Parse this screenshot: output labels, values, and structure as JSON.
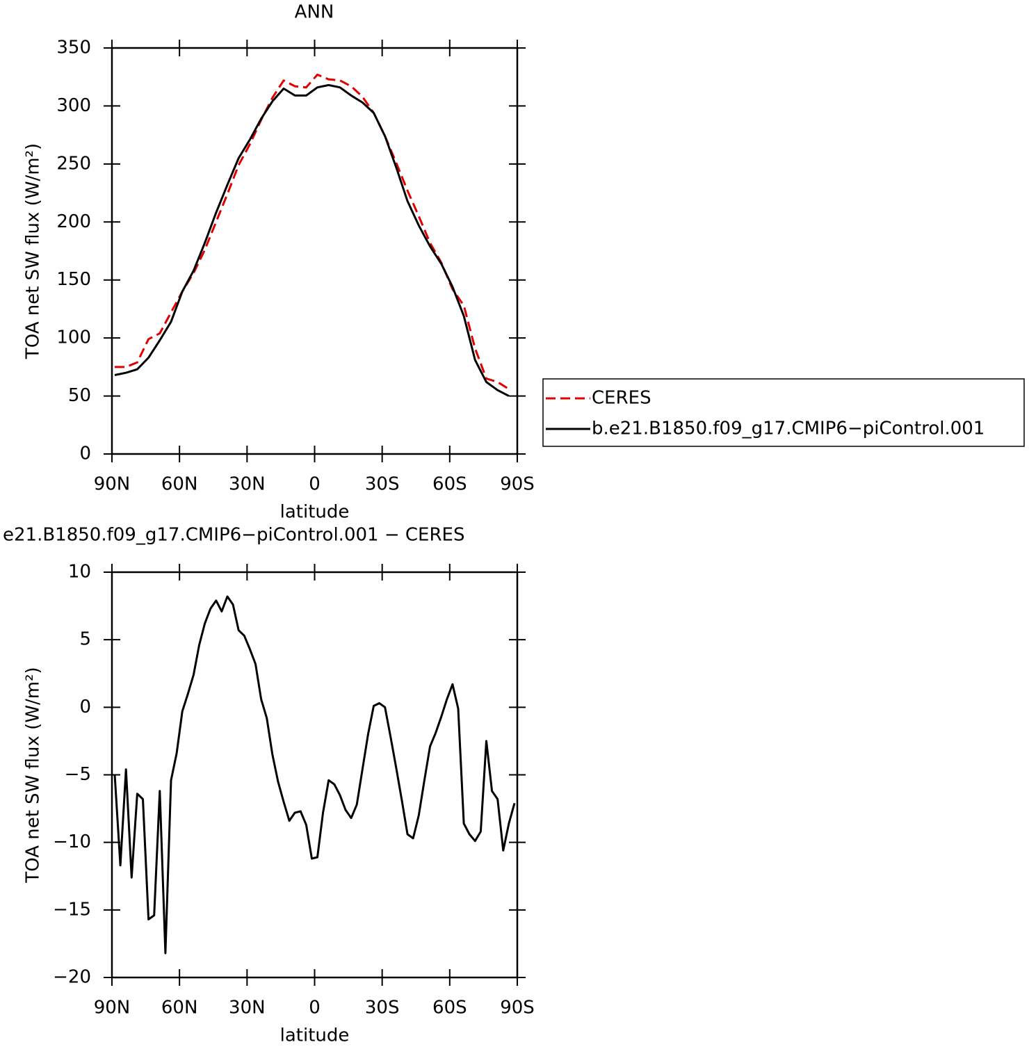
{
  "chart_data": [
    {
      "type": "line",
      "title": "ANN",
      "xlabel": "latitude",
      "ylabel": "TOA net SW flux (W/m²)",
      "x": [
        88.75,
        83.75,
        78.75,
        73.75,
        68.75,
        63.75,
        58.75,
        53.75,
        48.75,
        43.75,
        38.75,
        33.75,
        28.75,
        23.75,
        18.75,
        13.75,
        8.75,
        3.75,
        -1.25,
        -6.25,
        -11.25,
        -16.25,
        -21.25,
        -26.25,
        -31.25,
        -36.25,
        -41.25,
        -46.25,
        -51.25,
        -56.25,
        -61.25,
        -66.25,
        -71.25,
        -76.25,
        -81.25,
        -86.25
      ],
      "series": [
        {
          "name": "CERES",
          "color": "#e00000",
          "linestyle": "dashed",
          "values": [
            75,
            75,
            79,
            99,
            104,
            122,
            140,
            156,
            176,
            200,
            224,
            249,
            267,
            288,
            307,
            322,
            317,
            316,
            327,
            323,
            322,
            317,
            308,
            294,
            274,
            251,
            227,
            205,
            182,
            165,
            142,
            128,
            91,
            65,
            62,
            56
          ]
        },
        {
          "name": "b.e21.B1850.f09_g17.CMIP6−piControl.001",
          "color": "#000000",
          "linestyle": "solid",
          "values": [
            68,
            70,
            73,
            83,
            98,
            114,
            140,
            158,
            182,
            208,
            232,
            255,
            271,
            289,
            304,
            315,
            309,
            309,
            316,
            318,
            316,
            309,
            303,
            294,
            274,
            247,
            218,
            197,
            179,
            164,
            144,
            119,
            81,
            62,
            55,
            50
          ]
        }
      ],
      "xlim": [
        90,
        -90
      ],
      "xticks": [
        {
          "value": 90,
          "label": "90N"
        },
        {
          "value": 60,
          "label": "60N"
        },
        {
          "value": 30,
          "label": "30N"
        },
        0,
        {
          "value": -30,
          "label": "30S"
        },
        {
          "value": -60,
          "label": "60S"
        },
        {
          "value": -90,
          "label": "90S"
        }
      ],
      "ylim": [
        0,
        350
      ],
      "yticks": [
        0,
        50,
        100,
        150,
        200,
        250,
        300,
        350
      ],
      "legend": "right"
    },
    {
      "type": "line",
      "title": "e21.B1850.f09_g17.CMIP6−piControl.001 − CERES",
      "xlabel": "latitude",
      "ylabel": "TOA net SW flux (W/m²)",
      "x": [
        88.75,
        86.25,
        83.75,
        81.25,
        78.75,
        76.25,
        73.75,
        71.25,
        68.75,
        66.25,
        63.75,
        61.25,
        58.75,
        56.25,
        53.75,
        51.25,
        48.75,
        46.25,
        43.75,
        41.25,
        38.75,
        36.25,
        33.75,
        31.25,
        28.75,
        26.25,
        23.75,
        21.25,
        18.75,
        16.25,
        13.75,
        11.25,
        8.75,
        6.25,
        3.75,
        1.25,
        -1.25,
        -3.75,
        -6.25,
        -8.75,
        -11.25,
        -13.75,
        -16.25,
        -18.75,
        -21.25,
        -23.75,
        -26.25,
        -28.75,
        -31.25,
        -33.75,
        -36.25,
        -38.75,
        -41.25,
        -43.75,
        -46.25,
        -48.75,
        -51.25,
        -53.75,
        -56.25,
        -58.75,
        -61.25,
        -63.75,
        -66.25,
        -68.75,
        -71.25,
        -73.75,
        -76.25,
        -78.75,
        -81.25,
        -83.75,
        -86.25,
        -88.75
      ],
      "values": [
        -5.0,
        -11.7,
        -4.6,
        -12.6,
        -6.4,
        -6.8,
        -15.7,
        -15.4,
        -6.2,
        -18.2,
        -5.4,
        -3.4,
        -0.3,
        1.0,
        2.4,
        4.6,
        6.2,
        7.3,
        7.9,
        7.1,
        8.2,
        7.6,
        5.7,
        5.3,
        4.3,
        3.2,
        0.6,
        -0.8,
        -3.5,
        -5.5,
        -7.0,
        -8.4,
        -7.8,
        -7.7,
        -8.7,
        -11.2,
        -11.1,
        -7.8,
        -5.4,
        -5.7,
        -6.5,
        -7.6,
        -8.2,
        -7.2,
        -4.6,
        -2.0,
        0.1,
        0.3,
        0.0,
        -2.2,
        -4.5,
        -6.9,
        -9.4,
        -9.7,
        -8.0,
        -5.4,
        -2.9,
        -1.9,
        -0.7,
        0.6,
        1.7,
        -0.1,
        -8.6,
        -9.4,
        -9.9,
        -9.2,
        -2.5,
        -6.2,
        -6.8,
        -10.6,
        -8.6,
        -7.1
      ],
      "color": "#000000",
      "xlim": [
        90,
        -90
      ],
      "xticks": [
        {
          "value": 90,
          "label": "90N"
        },
        {
          "value": 60,
          "label": "60N"
        },
        {
          "value": 30,
          "label": "30N"
        },
        0,
        {
          "value": -30,
          "label": "30S"
        },
        {
          "value": -60,
          "label": "60S"
        },
        {
          "value": -90,
          "label": "90S"
        }
      ],
      "ylim": [
        -20,
        10
      ],
      "yticks": [
        {
          "value": -20,
          "label": "−20"
        },
        {
          "value": -15,
          "label": "−15"
        },
        {
          "value": -10,
          "label": "−10"
        },
        {
          "value": -5,
          "label": "−5"
        },
        0,
        5,
        10
      ]
    }
  ]
}
